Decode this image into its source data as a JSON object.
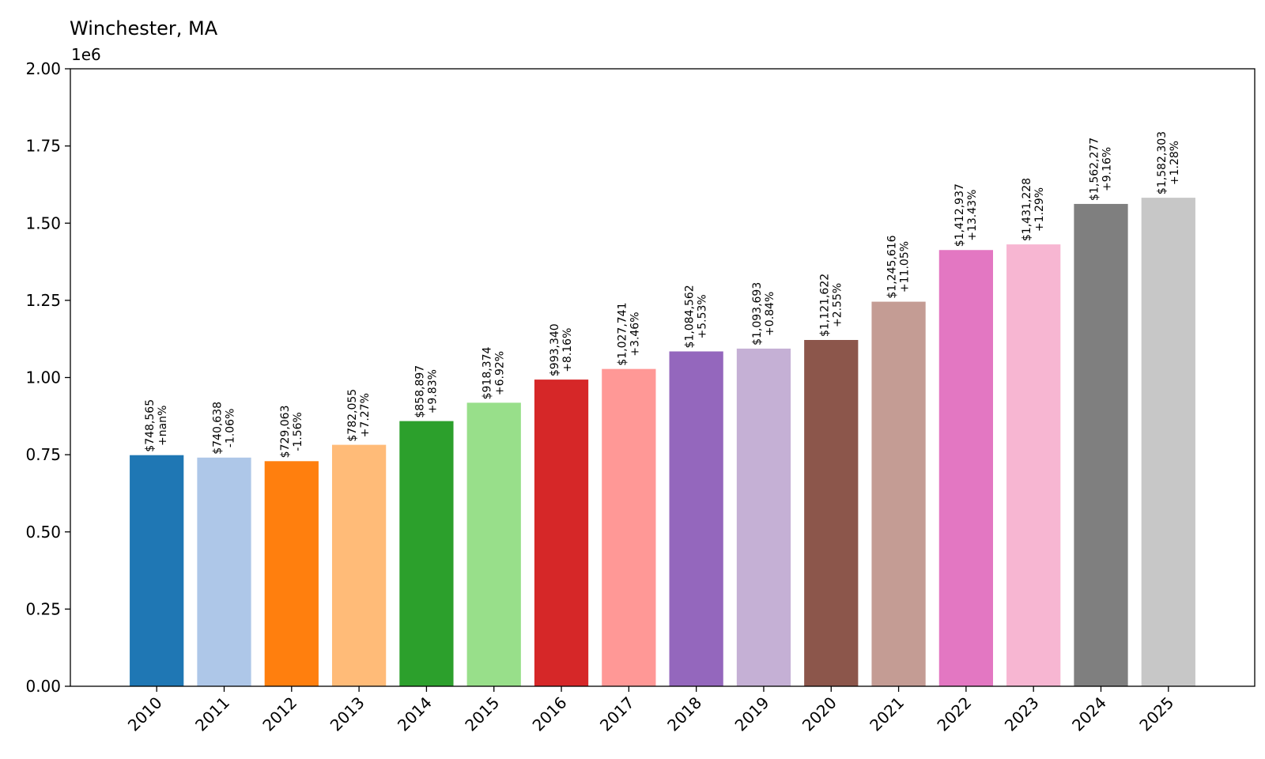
{
  "chart_data": {
    "type": "bar",
    "title": "Winchester, MA",
    "xlabel": "",
    "ylabel": "",
    "y_offset_label": "1e6",
    "ylim": [
      0,
      2000000
    ],
    "y_ticks": [
      0,
      250000,
      500000,
      750000,
      1000000,
      1250000,
      1500000,
      1750000,
      2000000
    ],
    "y_tick_labels": [
      "0.00",
      "0.25",
      "0.50",
      "0.75",
      "1.00",
      "1.25",
      "1.50",
      "1.75",
      "2.00"
    ],
    "grid": false,
    "legend": "none",
    "categories": [
      "2010",
      "2011",
      "2012",
      "2013",
      "2014",
      "2015",
      "2016",
      "2017",
      "2018",
      "2019",
      "2020",
      "2021",
      "2022",
      "2023",
      "2024",
      "2025"
    ],
    "values": [
      748565,
      740638,
      729063,
      782055,
      858897,
      918374,
      993340,
      1027741,
      1084562,
      1093693,
      1121622,
      1245616,
      1412937,
      1431228,
      1562277,
      1582303
    ],
    "value_labels": [
      "$748,565",
      "$740,638",
      "$729,063",
      "$782,055",
      "$858,897",
      "$918,374",
      "$993,340",
      "$1,027,741",
      "$1,084,562",
      "$1,093,693",
      "$1,121,622",
      "$1,245,616",
      "$1,412,937",
      "$1,431,228",
      "$1,562,277",
      "$1,582,303"
    ],
    "change_labels": [
      "+nan%",
      "-1.06%",
      "-1.56%",
      "+7.27%",
      "+9.83%",
      "+6.92%",
      "+8.16%",
      "+3.46%",
      "+5.53%",
      "+0.84%",
      "+2.55%",
      "+11.05%",
      "+13.43%",
      "+1.29%",
      "+9.16%",
      "+1.28%"
    ],
    "colors": [
      "#1f77b4",
      "#aec7e8",
      "#ff7f0e",
      "#ffbb78",
      "#2ca02c",
      "#98df8a",
      "#d62728",
      "#ff9896",
      "#9467bd",
      "#c5b0d5",
      "#8c564b",
      "#c49c94",
      "#e377c2",
      "#f7b6d2",
      "#7f7f7f",
      "#c7c7c7"
    ]
  }
}
